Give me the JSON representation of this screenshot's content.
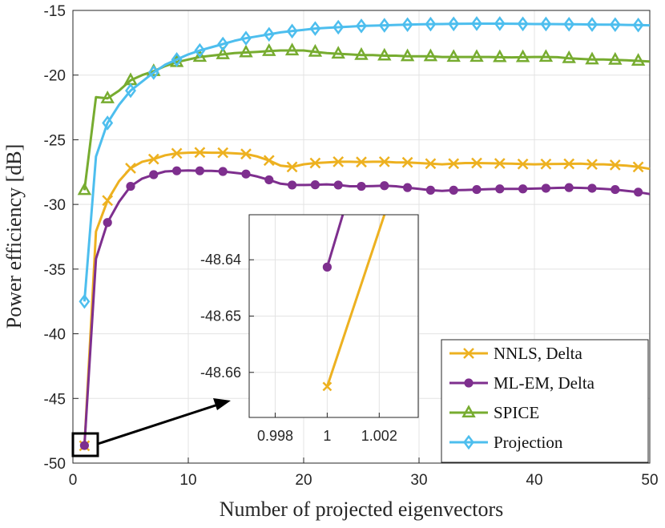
{
  "chart_data": {
    "type": "line",
    "xlabel": "Number of projected eigenvectors",
    "ylabel": "Power efficiency [dB]",
    "xlim": [
      0,
      50
    ],
    "ylim": [
      -50,
      -15
    ],
    "xticks": [
      0,
      10,
      20,
      30,
      40,
      50
    ],
    "xtick_labels": [
      "0",
      "10",
      "20",
      "30",
      "40",
      "50"
    ],
    "yticks": [
      -50,
      -45,
      -40,
      -35,
      -30,
      -25,
      -20,
      -15
    ],
    "ytick_labels": [
      "-50",
      "-45",
      "-40",
      "-35",
      "-30",
      "-25",
      "-20",
      "-15"
    ],
    "grid": true,
    "legend_position": "bottom-right",
    "series": [
      {
        "name": "NNLS, Delta",
        "color": "#EDB120",
        "marker": "x",
        "x": [
          1,
          2,
          3,
          4,
          5,
          6,
          7,
          8,
          9,
          10,
          11,
          12,
          13,
          14,
          15,
          16,
          17,
          18,
          19,
          20,
          21,
          22,
          23,
          24,
          25,
          26,
          27,
          28,
          29,
          30,
          31,
          32,
          33,
          34,
          35,
          36,
          37,
          38,
          39,
          40,
          41,
          42,
          43,
          44,
          45,
          46,
          47,
          48,
          49,
          50
        ],
        "y": [
          -48.66,
          -32.1,
          -29.7,
          -28.2,
          -27.2,
          -26.7,
          -26.5,
          -26.2,
          -26.05,
          -26.0,
          -25.98,
          -26.0,
          -26.0,
          -26.05,
          -26.1,
          -26.3,
          -26.6,
          -27.0,
          -27.1,
          -26.9,
          -26.8,
          -26.75,
          -26.7,
          -26.7,
          -26.72,
          -26.7,
          -26.7,
          -26.75,
          -26.75,
          -26.8,
          -26.85,
          -26.9,
          -26.85,
          -26.8,
          -26.8,
          -26.82,
          -26.83,
          -26.85,
          -26.88,
          -26.9,
          -26.88,
          -26.87,
          -26.86,
          -26.85,
          -26.9,
          -26.9,
          -26.95,
          -27.0,
          -27.1,
          -27.25
        ]
      },
      {
        "name": "ML-EM, Delta",
        "color": "#7E2F8E",
        "marker": "o",
        "x": [
          1,
          2,
          3,
          4,
          5,
          6,
          7,
          8,
          9,
          10,
          11,
          12,
          13,
          14,
          15,
          16,
          17,
          18,
          19,
          20,
          21,
          22,
          23,
          24,
          25,
          26,
          27,
          28,
          29,
          30,
          31,
          32,
          33,
          34,
          35,
          36,
          37,
          38,
          39,
          40,
          41,
          42,
          43,
          44,
          45,
          46,
          47,
          48,
          49,
          50
        ],
        "y": [
          -48.64,
          -34.2,
          -31.4,
          -29.8,
          -28.6,
          -28.0,
          -27.7,
          -27.45,
          -27.4,
          -27.38,
          -27.4,
          -27.4,
          -27.45,
          -27.55,
          -27.65,
          -27.85,
          -28.1,
          -28.4,
          -28.5,
          -28.5,
          -28.48,
          -28.45,
          -28.5,
          -28.6,
          -28.6,
          -28.58,
          -28.55,
          -28.6,
          -28.7,
          -28.8,
          -28.9,
          -28.95,
          -28.9,
          -28.88,
          -28.85,
          -28.82,
          -28.8,
          -28.8,
          -28.8,
          -28.78,
          -28.75,
          -28.72,
          -28.7,
          -28.72,
          -28.75,
          -28.8,
          -28.85,
          -28.95,
          -29.05,
          -29.2
        ]
      },
      {
        "name": "SPICE",
        "color": "#77AC30",
        "marker": "triangle",
        "x": [
          1,
          2,
          3,
          4,
          5,
          6,
          7,
          8,
          9,
          10,
          11,
          12,
          13,
          14,
          15,
          16,
          17,
          18,
          19,
          20,
          21,
          22,
          23,
          24,
          25,
          26,
          27,
          28,
          29,
          30,
          31,
          32,
          33,
          34,
          35,
          36,
          37,
          38,
          39,
          40,
          41,
          42,
          43,
          44,
          45,
          46,
          47,
          48,
          49,
          50
        ],
        "y": [
          -28.9,
          -21.7,
          -21.8,
          -21.2,
          -20.4,
          -20.0,
          -19.7,
          -19.3,
          -19.0,
          -18.8,
          -18.6,
          -18.5,
          -18.4,
          -18.3,
          -18.25,
          -18.2,
          -18.15,
          -18.1,
          -18.1,
          -18.1,
          -18.2,
          -18.3,
          -18.35,
          -18.4,
          -18.45,
          -18.45,
          -18.5,
          -18.5,
          -18.55,
          -18.55,
          -18.55,
          -18.6,
          -18.6,
          -18.6,
          -18.6,
          -18.6,
          -18.62,
          -18.63,
          -18.62,
          -18.6,
          -18.6,
          -18.62,
          -18.7,
          -18.75,
          -18.8,
          -18.8,
          -18.82,
          -18.85,
          -18.9,
          -18.95
        ]
      },
      {
        "name": "Projection",
        "color": "#4DBEEE",
        "marker": "diamond",
        "x": [
          1,
          2,
          3,
          4,
          5,
          6,
          7,
          8,
          9,
          10,
          11,
          12,
          13,
          14,
          15,
          16,
          17,
          18,
          19,
          20,
          21,
          22,
          23,
          24,
          25,
          26,
          27,
          28,
          29,
          30,
          31,
          32,
          33,
          34,
          35,
          36,
          37,
          38,
          39,
          40,
          41,
          42,
          43,
          44,
          45,
          46,
          47,
          48,
          49,
          50
        ],
        "y": [
          -37.5,
          -26.3,
          -23.7,
          -22.3,
          -21.2,
          -20.5,
          -19.8,
          -19.2,
          -18.8,
          -18.4,
          -18.1,
          -17.85,
          -17.6,
          -17.35,
          -17.15,
          -17.0,
          -16.85,
          -16.7,
          -16.6,
          -16.5,
          -16.4,
          -16.35,
          -16.3,
          -16.25,
          -16.2,
          -16.18,
          -16.15,
          -16.12,
          -16.1,
          -16.08,
          -16.06,
          -16.05,
          -16.04,
          -16.03,
          -16.02,
          -16.02,
          -16.02,
          -16.03,
          -16.04,
          -16.05,
          -16.05,
          -16.06,
          -16.07,
          -16.08,
          -16.09,
          -16.1,
          -16.1,
          -16.12,
          -16.13,
          -16.15
        ]
      }
    ],
    "inset": {
      "xlim": [
        0.997,
        1.0035
      ],
      "ylim": [
        -48.668,
        -48.632
      ],
      "xticks": [
        0.998,
        1,
        1.002
      ],
      "xtick_labels": [
        "0.998",
        "1",
        "1.002"
      ],
      "yticks": [
        -48.64,
        -48.65,
        -48.66
      ],
      "ytick_labels": [
        "-48.64",
        "-48.65",
        "-48.66"
      ],
      "nnls_point": [
        1,
        -48.6625
      ],
      "mlem_point": [
        1,
        -48.6413
      ],
      "nnls_line_to": [
        1.0022,
        -48.632
      ],
      "mlem_line_to": [
        1.0006,
        -48.632
      ]
    }
  }
}
